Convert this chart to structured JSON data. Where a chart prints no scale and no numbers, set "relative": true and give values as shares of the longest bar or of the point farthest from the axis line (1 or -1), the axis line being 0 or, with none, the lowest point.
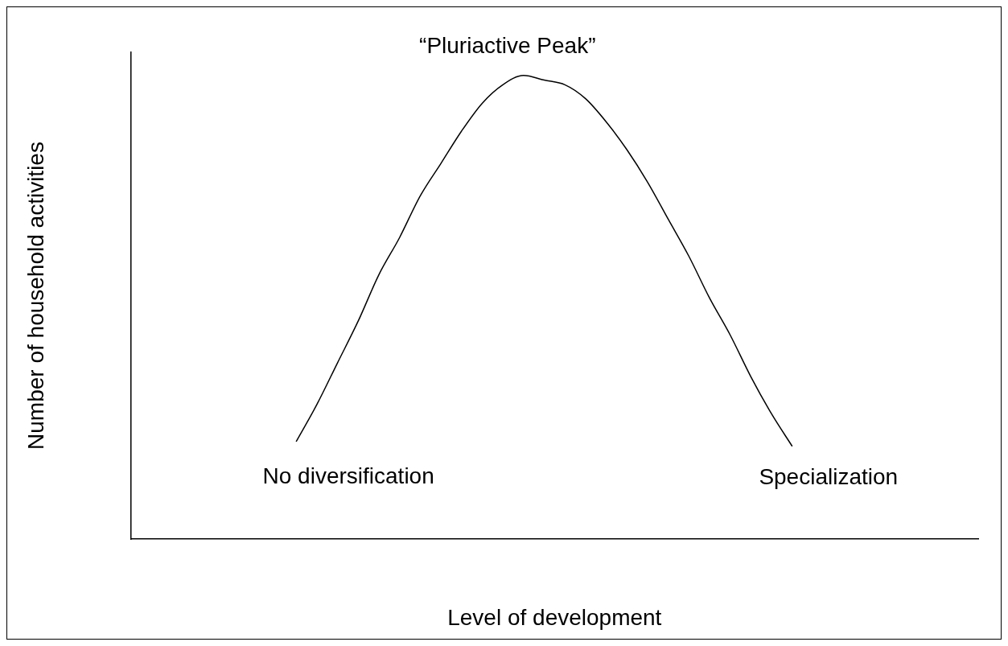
{
  "chart_data": {
    "type": "line",
    "relative": true,
    "xlabel": "Level of development",
    "ylabel": "Number of household activities",
    "grid": false,
    "legend": false,
    "marker": "none",
    "line_style": "solid",
    "categories": [
      null,
      null,
      null,
      null,
      null,
      null,
      null,
      null,
      null,
      null,
      null,
      null,
      null,
      null,
      null,
      null,
      null,
      null,
      null,
      null,
      null,
      null,
      null,
      null,
      null,
      null,
      null,
      null,
      null,
      null,
      null,
      null,
      null,
      null,
      null,
      null,
      null,
      null,
      null,
      null,
      null,
      null
    ],
    "series": [
      {
        "color": "#000000",
        "values": [
          null,
          null,
          null,
          null,
          null,
          null,
          null,
          null,
          0.21,
          0.29,
          0.38,
          0.47,
          0.57,
          0.65,
          0.74,
          0.81,
          0.88,
          0.94,
          0.98,
          1.0,
          0.99,
          0.98,
          0.95,
          0.9,
          0.84,
          0.77,
          0.69,
          0.61,
          0.52,
          0.44,
          0.35,
          0.27,
          0.2,
          null,
          null,
          null,
          null,
          null,
          null,
          null,
          null,
          null
        ]
      }
    ],
    "annotations": [
      "“Pluriactive Peak”",
      "No diversification",
      "Specialization"
    ]
  }
}
